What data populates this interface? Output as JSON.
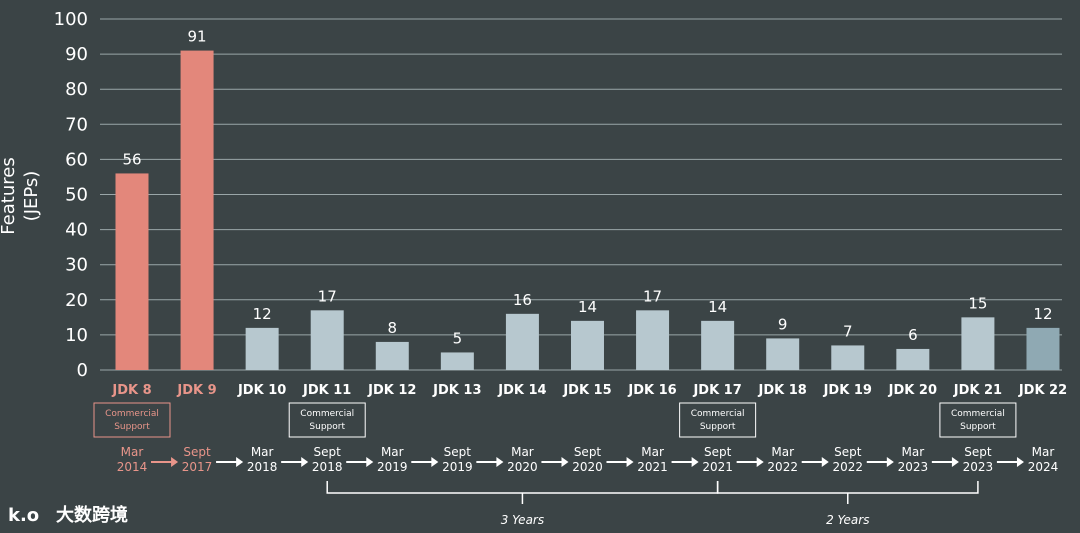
{
  "chart_data": {
    "type": "bar",
    "ylabel": [
      "Features",
      "(JEPs)"
    ],
    "ylim": [
      0,
      100
    ],
    "yticks": [
      0,
      10,
      20,
      30,
      40,
      50,
      60,
      70,
      80,
      90,
      100
    ],
    "grid": true,
    "categories": [
      "JDK 8",
      "JDK 9",
      "JDK 10",
      "JDK 11",
      "JDK 12",
      "JDK 13",
      "JDK 14",
      "JDK 15",
      "JDK 16",
      "JDK 17",
      "JDK 18",
      "JDK 19",
      "JDK 20",
      "JDK 21",
      "JDK 22"
    ],
    "values": [
      56,
      91,
      12,
      17,
      8,
      5,
      16,
      14,
      17,
      14,
      9,
      7,
      6,
      15,
      12
    ],
    "release_dates": [
      [
        "Mar",
        "2014"
      ],
      [
        "Sept",
        "2017"
      ],
      [
        "Mar",
        "2018"
      ],
      [
        "Sept",
        "2018"
      ],
      [
        "Mar",
        "2019"
      ],
      [
        "Sept",
        "2019"
      ],
      [
        "Mar",
        "2020"
      ],
      [
        "Sept",
        "2020"
      ],
      [
        "Mar",
        "2021"
      ],
      [
        "Sept",
        "2021"
      ],
      [
        "Mar",
        "2022"
      ],
      [
        "Sept",
        "2022"
      ],
      [
        "Mar",
        "2023"
      ],
      [
        "Sept",
        "2023"
      ],
      [
        "Mar",
        "2024"
      ]
    ],
    "commercial_support_label": [
      "Commercial",
      "Support"
    ],
    "commercial_support_releases": [
      "JDK 8",
      "JDK 11",
      "JDK 17",
      "JDK 21"
    ],
    "spans": [
      {
        "label": "3 Years",
        "from": "JDK 11",
        "to": "JDK 17"
      },
      {
        "label": "2 Years",
        "from": "JDK 17",
        "to": "JDK 21"
      }
    ]
  },
  "colors": {
    "background": "#3b4446",
    "legacy_bar": "#e3877b",
    "modern_bar": "#b7c8cf",
    "latest_bar": "#8fa9b3",
    "legacy_text": "#e8958a",
    "text": "#ffffff"
  },
  "watermark": {
    "logo_text": "k.o",
    "text": "大数跨境"
  }
}
